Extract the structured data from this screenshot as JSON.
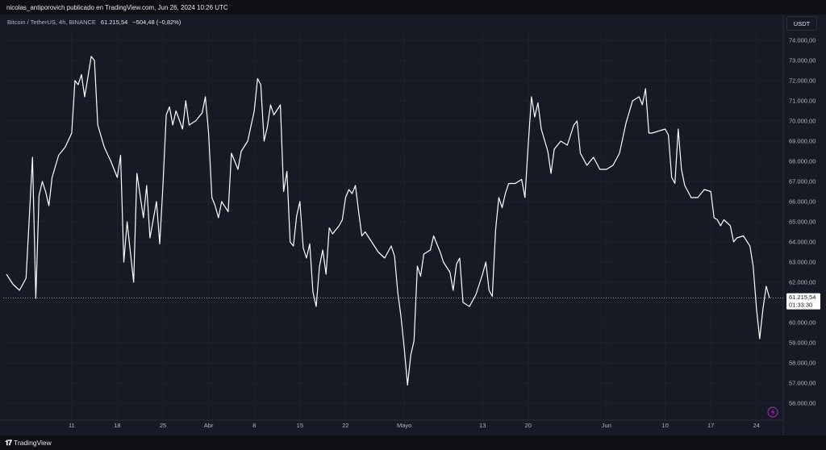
{
  "publication": "nicolas_antiporovich publicado en TradingView.com, Jun 26, 2024 10:26 UTC",
  "legend": {
    "symbol": "Bitcoin / TetherUS, 4h, BINANCE",
    "price": "61.215,54",
    "change": "−504,48 (−0,82%)"
  },
  "currency_button": "USDT",
  "last_price_label": "61.215,54",
  "countdown_label": "01:33:30",
  "brand": "TradingView",
  "colors": {
    "background": "#161a25",
    "line": "#ffffff",
    "grid": "#1e222d",
    "flash_icon": "#9c27b0"
  },
  "chart_data": {
    "type": "line",
    "title": "",
    "xlabel": "",
    "ylabel": "",
    "ylim": [
      55500,
      75000
    ],
    "grid": true,
    "x_ticks": [
      {
        "label": "11",
        "date": "2024-03-11"
      },
      {
        "label": "18",
        "date": "2024-03-18"
      },
      {
        "label": "25",
        "date": "2024-03-25"
      },
      {
        "label": "Abr",
        "date": "2024-04-01"
      },
      {
        "label": "8",
        "date": "2024-04-08"
      },
      {
        "label": "15",
        "date": "2024-04-15"
      },
      {
        "label": "22",
        "date": "2024-04-22"
      },
      {
        "label": "Mayo",
        "date": "2024-05-01"
      },
      {
        "label": "13",
        "date": "2024-05-13"
      },
      {
        "label": "20",
        "date": "2024-05-20"
      },
      {
        "label": "Jun",
        "date": "2024-06-01"
      },
      {
        "label": "10",
        "date": "2024-06-10"
      },
      {
        "label": "17",
        "date": "2024-06-17"
      },
      {
        "label": "24",
        "date": "2024-06-24"
      }
    ],
    "y_ticks": [
      "56.000,00",
      "57.000,00",
      "58.000,00",
      "59.000,00",
      "60.000,00",
      "61.000,00",
      "62.000,00",
      "63.000,00",
      "64.000,00",
      "65.000,00",
      "66.000,00",
      "67.000,00",
      "68.000,00",
      "69.000,00",
      "70.000,00",
      "71.000,00",
      "72.000,00",
      "73.000,00",
      "74.000,00"
    ],
    "y_tick_values": [
      56000,
      57000,
      58000,
      59000,
      60000,
      61000,
      62000,
      63000,
      64000,
      65000,
      66000,
      67000,
      68000,
      69000,
      70000,
      71000,
      72000,
      73000,
      74000
    ],
    "last_value": 61215.54,
    "series": [
      {
        "points": [
          [
            "2024-03-01",
            62400
          ],
          [
            "2024-03-02",
            61900
          ],
          [
            "2024-03-03",
            61600
          ],
          [
            "2024-03-04",
            62200
          ],
          [
            "2024-03-05",
            68200
          ],
          [
            "2024-03-05T12",
            61200
          ],
          [
            "2024-03-06",
            66300
          ],
          [
            "2024-03-06T12",
            67000
          ],
          [
            "2024-03-07",
            66500
          ],
          [
            "2024-03-07T12",
            65800
          ],
          [
            "2024-03-08",
            67200
          ],
          [
            "2024-03-09",
            68300
          ],
          [
            "2024-03-10",
            68700
          ],
          [
            "2024-03-11",
            69400
          ],
          [
            "2024-03-11T12",
            72000
          ],
          [
            "2024-03-12",
            71800
          ],
          [
            "2024-03-12T12",
            72300
          ],
          [
            "2024-03-13",
            71200
          ],
          [
            "2024-03-14",
            73200
          ],
          [
            "2024-03-14T12",
            73000
          ],
          [
            "2024-03-15",
            69800
          ],
          [
            "2024-03-16",
            68700
          ],
          [
            "2024-03-17",
            68000
          ],
          [
            "2024-03-18",
            67200
          ],
          [
            "2024-03-18T12",
            68300
          ],
          [
            "2024-03-19",
            63000
          ],
          [
            "2024-03-19T12",
            65000
          ],
          [
            "2024-03-20",
            63500
          ],
          [
            "2024-03-20T12",
            62000
          ],
          [
            "2024-03-21",
            67400
          ],
          [
            "2024-03-22",
            65200
          ],
          [
            "2024-03-22T12",
            66800
          ],
          [
            "2024-03-23",
            64200
          ],
          [
            "2024-03-24",
            66000
          ],
          [
            "2024-03-24T12",
            63900
          ],
          [
            "2024-03-25",
            66800
          ],
          [
            "2024-03-25T12",
            70300
          ],
          [
            "2024-03-26",
            70700
          ],
          [
            "2024-03-26T12",
            69800
          ],
          [
            "2024-03-27",
            70500
          ],
          [
            "2024-03-28",
            69600
          ],
          [
            "2024-03-28T12",
            71000
          ],
          [
            "2024-03-29",
            69800
          ],
          [
            "2024-03-30",
            70000
          ],
          [
            "2024-03-31",
            70400
          ],
          [
            "2024-03-31T12",
            71200
          ],
          [
            "2024-04-01",
            69400
          ],
          [
            "2024-04-01T12",
            66200
          ],
          [
            "2024-04-02",
            65800
          ],
          [
            "2024-04-02T12",
            65200
          ],
          [
            "2024-04-03",
            66000
          ],
          [
            "2024-04-04",
            65500
          ],
          [
            "2024-04-04T12",
            68400
          ],
          [
            "2024-04-05",
            68000
          ],
          [
            "2024-04-05T12",
            67600
          ],
          [
            "2024-04-06",
            68500
          ],
          [
            "2024-04-07",
            69000
          ],
          [
            "2024-04-08",
            70500
          ],
          [
            "2024-04-08T12",
            72100
          ],
          [
            "2024-04-09",
            71800
          ],
          [
            "2024-04-09T12",
            69000
          ],
          [
            "2024-04-10",
            69700
          ],
          [
            "2024-04-10T12",
            70800
          ],
          [
            "2024-04-11",
            70300
          ],
          [
            "2024-04-12",
            70800
          ],
          [
            "2024-04-12T12",
            66500
          ],
          [
            "2024-04-13",
            67500
          ],
          [
            "2024-04-13T12",
            64000
          ],
          [
            "2024-04-14",
            63800
          ],
          [
            "2024-04-14T12",
            65300
          ],
          [
            "2024-04-15",
            66000
          ],
          [
            "2024-04-15T12",
            63700
          ],
          [
            "2024-04-16",
            63200
          ],
          [
            "2024-04-16T12",
            63900
          ],
          [
            "2024-04-17",
            61500
          ],
          [
            "2024-04-17T12",
            60800
          ],
          [
            "2024-04-18",
            62800
          ],
          [
            "2024-04-18T12",
            63600
          ],
          [
            "2024-04-19",
            62400
          ],
          [
            "2024-04-19T12",
            64700
          ],
          [
            "2024-04-20",
            64400
          ],
          [
            "2024-04-21",
            64800
          ],
          [
            "2024-04-21T12",
            65100
          ],
          [
            "2024-04-22",
            66200
          ],
          [
            "2024-04-22T12",
            66600
          ],
          [
            "2024-04-23",
            66400
          ],
          [
            "2024-04-23T12",
            66800
          ],
          [
            "2024-04-24",
            65500
          ],
          [
            "2024-04-24T12",
            64300
          ],
          [
            "2024-04-25",
            64500
          ],
          [
            "2024-04-26",
            64000
          ],
          [
            "2024-04-27",
            63500
          ],
          [
            "2024-04-28",
            63200
          ],
          [
            "2024-04-29",
            63800
          ],
          [
            "2024-04-29T12",
            63300
          ],
          [
            "2024-04-30",
            61500
          ],
          [
            "2024-04-30T12",
            60300
          ],
          [
            "2024-05-01",
            58700
          ],
          [
            "2024-05-01T12",
            56900
          ],
          [
            "2024-05-02",
            58400
          ],
          [
            "2024-05-02T12",
            59100
          ],
          [
            "2024-05-03",
            62800
          ],
          [
            "2024-05-03T12",
            62300
          ],
          [
            "2024-05-04",
            63400
          ],
          [
            "2024-05-05",
            63600
          ],
          [
            "2024-05-05T12",
            64300
          ],
          [
            "2024-05-06",
            63900
          ],
          [
            "2024-05-06T12",
            63500
          ],
          [
            "2024-05-07",
            63000
          ],
          [
            "2024-05-08",
            62500
          ],
          [
            "2024-05-08T12",
            61600
          ],
          [
            "2024-05-09",
            62900
          ],
          [
            "2024-05-09T12",
            63200
          ],
          [
            "2024-05-10",
            61000
          ],
          [
            "2024-05-10T12",
            60900
          ],
          [
            "2024-05-11",
            60800
          ],
          [
            "2024-05-12",
            61400
          ],
          [
            "2024-05-13",
            62400
          ],
          [
            "2024-05-13T12",
            63000
          ],
          [
            "2024-05-14",
            61600
          ],
          [
            "2024-05-14T12",
            61300
          ],
          [
            "2024-05-15",
            64600
          ],
          [
            "2024-05-15T12",
            66200
          ],
          [
            "2024-05-16",
            65700
          ],
          [
            "2024-05-16T12",
            66400
          ],
          [
            "2024-05-17",
            66900
          ],
          [
            "2024-05-18",
            66900
          ],
          [
            "2024-05-19",
            67100
          ],
          [
            "2024-05-19T12",
            66200
          ],
          [
            "2024-05-20",
            68800
          ],
          [
            "2024-05-20T12",
            71200
          ],
          [
            "2024-05-21",
            70200
          ],
          [
            "2024-05-21T12",
            70900
          ],
          [
            "2024-05-22",
            69600
          ],
          [
            "2024-05-23",
            68500
          ],
          [
            "2024-05-23T12",
            67400
          ],
          [
            "2024-05-24",
            68600
          ],
          [
            "2024-05-25",
            69000
          ],
          [
            "2024-05-26",
            68800
          ],
          [
            "2024-05-27",
            69800
          ],
          [
            "2024-05-27T12",
            70000
          ],
          [
            "2024-05-28",
            68400
          ],
          [
            "2024-05-29",
            67800
          ],
          [
            "2024-05-30",
            68200
          ],
          [
            "2024-05-31",
            67600
          ],
          [
            "2024-06-01",
            67600
          ],
          [
            "2024-06-02",
            67800
          ],
          [
            "2024-06-03",
            68400
          ],
          [
            "2024-06-04",
            69900
          ],
          [
            "2024-06-05",
            71000
          ],
          [
            "2024-06-06",
            71200
          ],
          [
            "2024-06-06T12",
            70800
          ],
          [
            "2024-06-07",
            71600
          ],
          [
            "2024-06-07T12",
            69400
          ],
          [
            "2024-06-08",
            69400
          ],
          [
            "2024-06-09",
            69500
          ],
          [
            "2024-06-10",
            69600
          ],
          [
            "2024-06-10T12",
            69300
          ],
          [
            "2024-06-11",
            67200
          ],
          [
            "2024-06-11T12",
            66900
          ],
          [
            "2024-06-12",
            69600
          ],
          [
            "2024-06-12T12",
            67600
          ],
          [
            "2024-06-13",
            66800
          ],
          [
            "2024-06-14",
            66200
          ],
          [
            "2024-06-15",
            66200
          ],
          [
            "2024-06-16",
            66600
          ],
          [
            "2024-06-17",
            66500
          ],
          [
            "2024-06-17T12",
            65200
          ],
          [
            "2024-06-18",
            65100
          ],
          [
            "2024-06-18T12",
            64800
          ],
          [
            "2024-06-19",
            65100
          ],
          [
            "2024-06-20",
            64800
          ],
          [
            "2024-06-20T12",
            64000
          ],
          [
            "2024-06-21",
            64200
          ],
          [
            "2024-06-22",
            64300
          ],
          [
            "2024-06-23",
            63800
          ],
          [
            "2024-06-23T12",
            62800
          ],
          [
            "2024-06-24",
            60700
          ],
          [
            "2024-06-24T12",
            59200
          ],
          [
            "2024-06-25",
            60700
          ],
          [
            "2024-06-25T12",
            61800
          ],
          [
            "2024-06-26",
            61215.54
          ]
        ]
      }
    ]
  }
}
